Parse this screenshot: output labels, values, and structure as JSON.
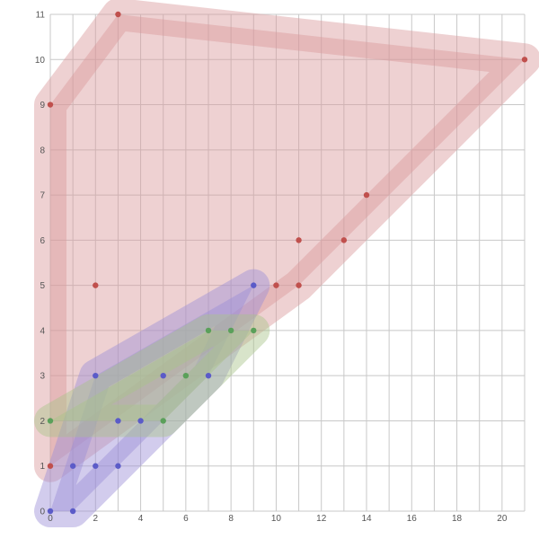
{
  "chart_data": {
    "type": "scatter",
    "title": "",
    "xlabel": "",
    "ylabel": "",
    "xlim": [
      0,
      21
    ],
    "ylim": [
      0,
      11
    ],
    "x_ticks": [
      "0",
      "2",
      "4",
      "6",
      "8",
      "10",
      "12",
      "14",
      "16",
      "18",
      "20"
    ],
    "y_ticks": [
      "0",
      "1",
      "2",
      "3",
      "4",
      "5",
      "6",
      "7",
      "8",
      "9",
      "10",
      "11"
    ],
    "grid": true,
    "legend": "none",
    "hulls": "each series is enclosed by a translucent rounded convex hull",
    "series": [
      {
        "color": "#c0504d",
        "hull_color": "#d9999b",
        "points": [
          [
            0,
            9
          ],
          [
            3,
            11
          ],
          [
            21,
            10
          ],
          [
            14,
            7
          ],
          [
            11,
            6
          ],
          [
            13,
            6
          ],
          [
            2,
            5
          ],
          [
            10,
            5
          ],
          [
            11,
            5
          ],
          [
            0,
            1
          ]
        ]
      },
      {
        "color": "#5b5bc8",
        "hull_color": "#9b8fd6",
        "points": [
          [
            9,
            5
          ],
          [
            2,
            3
          ],
          [
            5,
            3
          ],
          [
            7,
            3
          ],
          [
            3,
            2
          ],
          [
            4,
            2
          ],
          [
            1,
            1
          ],
          [
            2,
            1
          ],
          [
            3,
            1
          ],
          [
            0,
            0
          ],
          [
            1,
            0
          ]
        ]
      },
      {
        "color": "#5aa05a",
        "hull_color": "#a8c48a",
        "points": [
          [
            7,
            4
          ],
          [
            8,
            4
          ],
          [
            9,
            4
          ],
          [
            6,
            3
          ],
          [
            0,
            2
          ],
          [
            5,
            2
          ]
        ]
      }
    ]
  }
}
